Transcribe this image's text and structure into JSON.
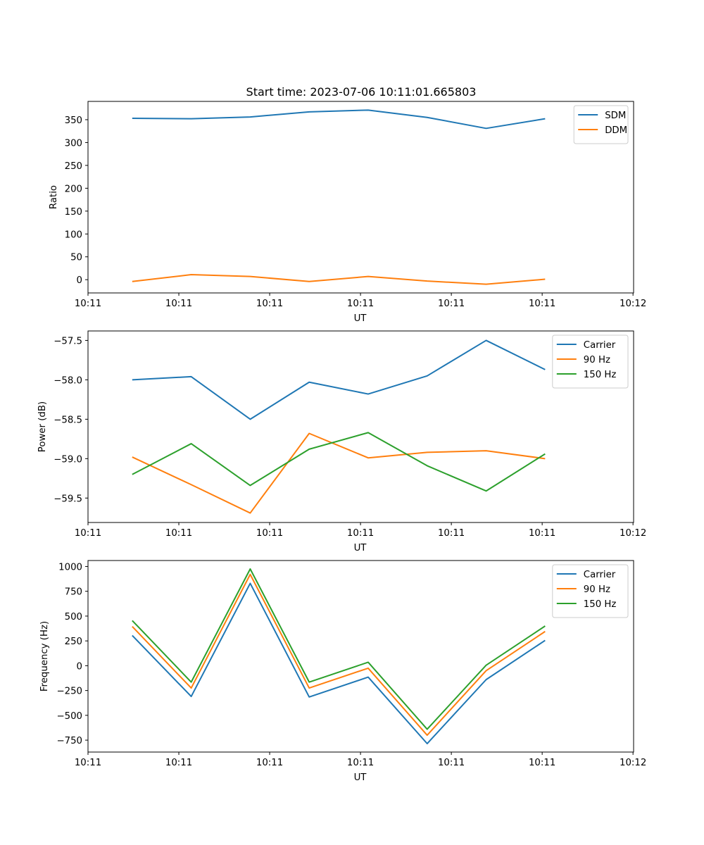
{
  "figure_title": "Start time: 2023-07-06 10:11:01.665803",
  "chart_data": [
    {
      "type": "line",
      "title": "Start time: 2023-07-06 10:11:01.665803",
      "xlabel": "UT",
      "ylabel": "Ratio",
      "x": [
        0.75,
        1.75,
        2.75,
        3.75,
        4.75,
        5.75,
        6.75,
        7.75
      ],
      "xlim": [
        0,
        9.25
      ],
      "xticks": [
        0.0,
        1.54,
        3.08,
        4.62,
        6.16,
        7.7,
        9.24
      ],
      "xtick_labels": [
        "10:11",
        "10:11",
        "10:11",
        "10:11",
        "10:11",
        "10:11",
        "10:12"
      ],
      "ylim": [
        -29,
        390
      ],
      "yticks": [
        0,
        50,
        100,
        150,
        200,
        250,
        300,
        350
      ],
      "ytick_labels": [
        "0",
        "50",
        "100",
        "150",
        "200",
        "250",
        "300",
        "350"
      ],
      "legend_position": "top-right",
      "series": [
        {
          "name": "SDM",
          "color": "#1f77b4",
          "values": [
            353,
            352,
            356,
            367,
            371,
            355,
            331,
            352
          ]
        },
        {
          "name": "DDM",
          "color": "#ff7f0e",
          "values": [
            -4,
            11,
            7,
            -4,
            7,
            -3,
            -10,
            1
          ]
        }
      ]
    },
    {
      "type": "line",
      "title": "",
      "xlabel": "UT",
      "ylabel": "Power (dB)",
      "x": [
        0.75,
        1.75,
        2.75,
        3.75,
        4.75,
        5.75,
        6.75,
        7.75
      ],
      "xlim": [
        0,
        9.25
      ],
      "xticks": [
        0.0,
        1.54,
        3.08,
        4.62,
        6.16,
        7.7,
        9.24
      ],
      "xtick_labels": [
        "10:11",
        "10:11",
        "10:11",
        "10:11",
        "10:11",
        "10:11",
        "10:12"
      ],
      "ylim": [
        -59.81,
        -57.38
      ],
      "yticks": [
        -59.5,
        -59.0,
        -58.5,
        -58.0,
        -57.5
      ],
      "ytick_labels": [
        "−59.5",
        "−59.0",
        "−58.5",
        "−58.0",
        "−57.5"
      ],
      "legend_position": "top-right",
      "series": [
        {
          "name": "Carrier",
          "color": "#1f77b4",
          "values": [
            -58.0,
            -57.96,
            -58.5,
            -58.03,
            -58.18,
            -57.95,
            -57.5,
            -57.87
          ]
        },
        {
          "name": "90 Hz",
          "color": "#ff7f0e",
          "values": [
            -58.98,
            -59.33,
            -59.69,
            -58.68,
            -58.99,
            -58.92,
            -58.9,
            -59.0
          ]
        },
        {
          "name": "150 Hz",
          "color": "#2ca02c",
          "values": [
            -59.2,
            -58.81,
            -59.34,
            -58.88,
            -58.67,
            -59.09,
            -59.41,
            -58.94
          ]
        }
      ]
    },
    {
      "type": "line",
      "title": "",
      "xlabel": "UT",
      "ylabel": "Frequency (Hz)",
      "x": [
        0.75,
        1.75,
        2.75,
        3.75,
        4.75,
        5.75,
        6.75,
        7.75
      ],
      "xlim": [
        0,
        9.25
      ],
      "xticks": [
        0.0,
        1.54,
        3.08,
        4.62,
        6.16,
        7.7,
        9.24
      ],
      "xtick_labels": [
        "10:11",
        "10:11",
        "10:11",
        "10:11",
        "10:11",
        "10:11",
        "10:12"
      ],
      "ylim": [
        -870,
        1060
      ],
      "yticks": [
        -750,
        -500,
        -250,
        0,
        250,
        500,
        750,
        1000
      ],
      "ytick_labels": [
        "−750",
        "−500",
        "−250",
        "0",
        "250",
        "500",
        "750",
        "1000"
      ],
      "legend_position": "top-right",
      "series": [
        {
          "name": "Carrier",
          "color": "#1f77b4",
          "values": [
            305,
            -310,
            830,
            -315,
            -115,
            -785,
            -140,
            255
          ]
        },
        {
          "name": "90 Hz",
          "color": "#ff7f0e",
          "values": [
            395,
            -225,
            920,
            -225,
            -25,
            -700,
            -50,
            345
          ]
        },
        {
          "name": "150 Hz",
          "color": "#2ca02c",
          "values": [
            455,
            -165,
            975,
            -165,
            35,
            -640,
            5,
            400
          ]
        }
      ]
    }
  ]
}
